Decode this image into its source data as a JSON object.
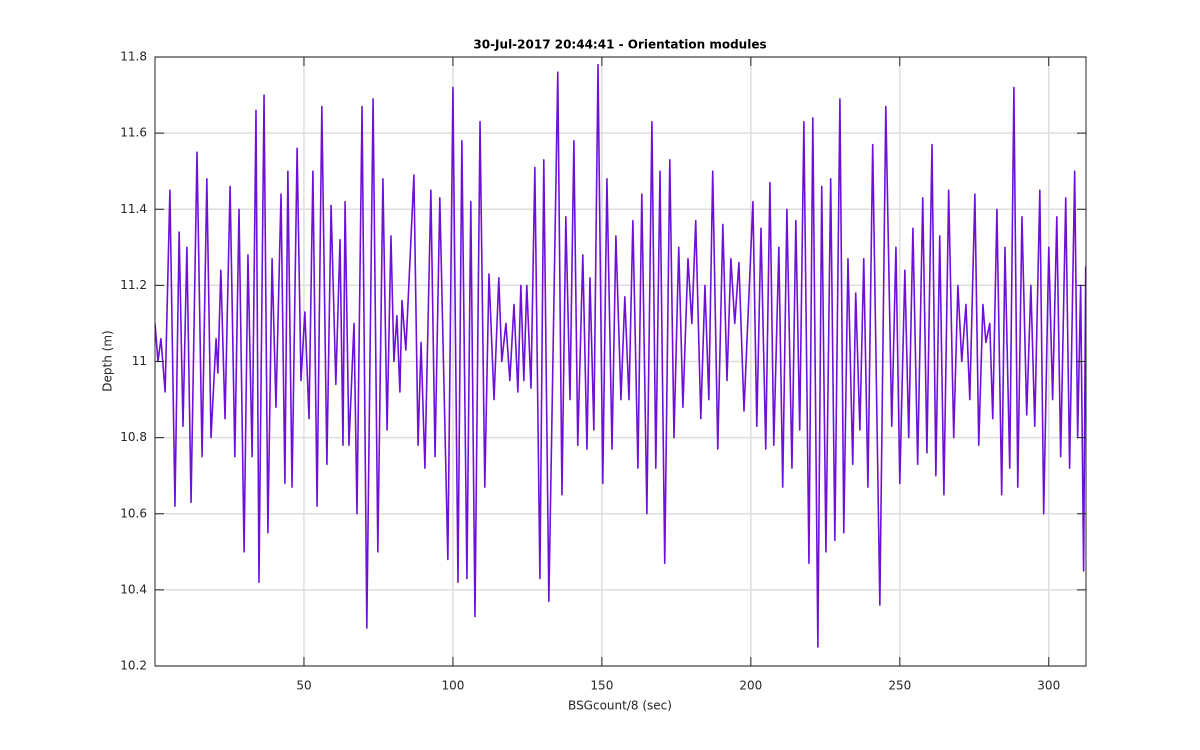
{
  "chart_data": {
    "type": "line",
    "title": "30-Jul-2017 20:44:41 - Orientation modules",
    "x_label": "BSGcount/8 (sec)",
    "y_label": "Depth (m)",
    "xlim": [
      0,
      312.5
    ],
    "ylim": [
      10.2,
      11.8
    ],
    "xticks": [
      50,
      100,
      150,
      200,
      250,
      300
    ],
    "yticks": [
      10.2,
      10.4,
      10.6,
      10.8,
      11,
      11.2,
      11.4,
      11.6,
      11.8
    ],
    "grid": true,
    "x": [
      0,
      1.0,
      2.0,
      3.4,
      5.0,
      6.7,
      8.1,
      9.4,
      10.7,
      12.1,
      14.1,
      15.8,
      17.4,
      18.8,
      20.5,
      21.1,
      22.1,
      23.5,
      25.2,
      26.8,
      28.2,
      29.9,
      31.2,
      32.6,
      33.9,
      34.9,
      36.6,
      37.9,
      39.3,
      40.6,
      42.3,
      43.6,
      44.6,
      46.0,
      47.7,
      49.0,
      50.3,
      51.7,
      53.0,
      54.4,
      56.0,
      57.7,
      59.1,
      60.7,
      62.1,
      63.1,
      63.8,
      65.1,
      66.8,
      67.8,
      69.5,
      71.1,
      73.2,
      74.8,
      76.5,
      77.9,
      79.2,
      80.2,
      81.2,
      82.2,
      82.9,
      84.2,
      86.9,
      88.3,
      89.3,
      90.6,
      92.6,
      94.0,
      95.6,
      98.3,
      100.0,
      101.7,
      103.0,
      104.7,
      106.0,
      107.4,
      109.1,
      110.7,
      112.1,
      113.8,
      115.4,
      116.4,
      117.8,
      119.1,
      120.5,
      121.8,
      122.8,
      123.8,
      124.8,
      126.2,
      127.5,
      129.2,
      130.5,
      132.2,
      135.2,
      136.6,
      137.9,
      139.3,
      140.6,
      141.9,
      143.6,
      145.0,
      146.0,
      147.3,
      148.7,
      150.3,
      151.7,
      153.4,
      154.7,
      156.4,
      157.7,
      159.1,
      160.4,
      162.1,
      163.4,
      165.1,
      166.8,
      168.1,
      169.5,
      171.1,
      172.8,
      174.2,
      175.8,
      177.2,
      178.9,
      180.2,
      181.5,
      183.2,
      184.6,
      185.9,
      187.2,
      188.9,
      190.6,
      192.0,
      193.3,
      194.6,
      196.0,
      197.7,
      200.7,
      202.0,
      203.4,
      205.0,
      206.4,
      207.7,
      209.4,
      210.7,
      212.1,
      213.8,
      215.1,
      216.4,
      217.8,
      219.5,
      220.8,
      222.5,
      223.8,
      225.2,
      226.8,
      228.2,
      229.9,
      231.2,
      232.6,
      234.2,
      235.2,
      236.6,
      237.9,
      239.3,
      240.9,
      243.3,
      245.3,
      247.3,
      248.7,
      250.0,
      251.7,
      253.0,
      254.4,
      256.0,
      257.7,
      259.1,
      260.8,
      262.1,
      263.4,
      264.8,
      266.4,
      268.1,
      269.5,
      270.8,
      272.2,
      273.5,
      275.2,
      276.5,
      277.9,
      278.9,
      280.2,
      281.2,
      282.6,
      284.2,
      285.3,
      286.9,
      288.3,
      289.6,
      291.0,
      292.6,
      294.0,
      295.3,
      297.0,
      298.3,
      300.0,
      301.3,
      302.7,
      304.0,
      305.7,
      307.0,
      308.7,
      309.7,
      310.7,
      311.7,
      312.4
    ],
    "series": [
      {
        "name": "Depth",
        "color": "#6e10d8",
        "values": [
          11.1,
          11.0,
          11.06,
          10.92,
          11.45,
          10.62,
          11.34,
          10.83,
          11.3,
          10.63,
          11.55,
          10.75,
          11.48,
          10.8,
          11.06,
          10.97,
          11.24,
          10.85,
          11.46,
          10.75,
          11.4,
          10.5,
          11.28,
          10.75,
          11.66,
          10.42,
          11.7,
          10.55,
          11.27,
          10.88,
          11.44,
          10.68,
          11.5,
          10.67,
          11.56,
          10.95,
          11.13,
          10.85,
          11.5,
          10.62,
          11.67,
          10.73,
          11.41,
          10.94,
          11.32,
          10.78,
          11.42,
          10.78,
          11.1,
          10.6,
          11.67,
          10.3,
          11.69,
          10.5,
          11.48,
          10.82,
          11.33,
          11.0,
          11.12,
          10.92,
          11.16,
          11.03,
          11.49,
          10.78,
          11.05,
          10.72,
          11.45,
          10.75,
          11.43,
          10.48,
          11.72,
          10.42,
          11.58,
          10.43,
          11.42,
          10.33,
          11.63,
          10.67,
          11.23,
          10.9,
          11.22,
          11.0,
          11.1,
          10.95,
          11.15,
          10.92,
          11.2,
          10.95,
          11.2,
          10.93,
          11.51,
          10.43,
          11.53,
          10.37,
          11.76,
          10.65,
          11.38,
          10.9,
          11.58,
          10.78,
          11.28,
          10.77,
          11.22,
          10.82,
          11.78,
          10.68,
          11.48,
          10.77,
          11.33,
          10.9,
          11.17,
          10.9,
          11.37,
          10.72,
          11.44,
          10.6,
          11.63,
          10.72,
          11.5,
          10.47,
          11.53,
          10.8,
          11.3,
          10.88,
          11.27,
          11.1,
          11.37,
          10.85,
          11.2,
          10.9,
          11.5,
          10.77,
          11.36,
          10.95,
          11.27,
          11.1,
          11.26,
          10.87,
          11.42,
          10.83,
          11.35,
          10.77,
          11.47,
          10.78,
          11.3,
          10.67,
          11.4,
          10.72,
          11.37,
          10.82,
          11.63,
          10.47,
          11.64,
          10.25,
          11.46,
          10.5,
          11.48,
          10.53,
          11.69,
          10.55,
          11.27,
          10.73,
          11.18,
          10.82,
          11.27,
          10.67,
          11.57,
          10.36,
          11.67,
          10.83,
          11.3,
          10.68,
          11.24,
          10.8,
          11.35,
          10.73,
          11.43,
          10.76,
          11.57,
          10.7,
          11.33,
          10.65,
          11.45,
          10.8,
          11.2,
          11.0,
          11.15,
          10.9,
          11.44,
          10.78,
          11.15,
          11.05,
          11.1,
          10.85,
          11.4,
          10.65,
          11.3,
          10.72,
          11.72,
          10.67,
          11.38,
          10.86,
          11.2,
          10.83,
          11.45,
          10.6,
          11.3,
          10.9,
          11.38,
          10.75,
          11.43,
          10.72,
          11.5,
          10.8,
          11.2,
          10.45,
          11.25
        ]
      }
    ]
  }
}
